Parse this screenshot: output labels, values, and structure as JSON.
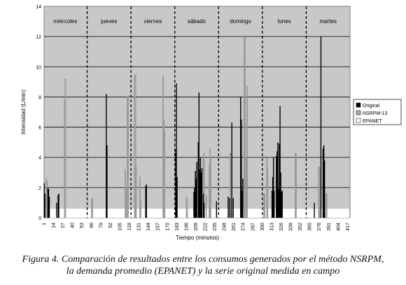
{
  "caption": {
    "line1": "Figura 4. Comparación de resultados entre los consumos generados por el método NSRPM,",
    "line2": "la demanda promedio (EPANET) y la serie original medida en campo"
  },
  "chart_data": {
    "type": "bar",
    "xlabel": "Tiempo (minutos)",
    "ylabel": "Intensidad (L/min)",
    "ylim": [
      0,
      14
    ],
    "yticks": [
      0,
      2,
      4,
      6,
      8,
      10,
      12,
      14
    ],
    "xlim": [
      1,
      420
    ],
    "xticks": [
      1,
      14,
      27,
      40,
      53,
      66,
      79,
      92,
      105,
      118,
      131,
      144,
      157,
      170,
      183,
      196,
      209,
      222,
      235,
      248,
      261,
      274,
      287,
      300,
      313,
      326,
      339,
      352,
      365,
      378,
      391,
      404,
      417
    ],
    "grid": true,
    "legend_position": "right",
    "day_boundaries": [
      60,
      120,
      180,
      240,
      300,
      360
    ],
    "day_labels": [
      {
        "label": "miércoles",
        "x": 30
      },
      {
        "label": "jueves",
        "x": 90
      },
      {
        "label": "viernes",
        "x": 150
      },
      {
        "label": "sábado",
        "x": 210
      },
      {
        "label": "domingo",
        "x": 270
      },
      {
        "label": "lunes",
        "x": 330
      },
      {
        "label": "martes",
        "x": 390
      }
    ],
    "series": [
      {
        "name": "Original",
        "color": "#000000",
        "points": [
          [
            1,
            2.3
          ],
          [
            2,
            1.6
          ],
          [
            6,
            2.0
          ],
          [
            7,
            1.9
          ],
          [
            8,
            1.4
          ],
          [
            18,
            1.0
          ],
          [
            20,
            1.5
          ],
          [
            21,
            1.6
          ],
          [
            86,
            8.2
          ],
          [
            87,
            4.8
          ],
          [
            140,
            2.1
          ],
          [
            141,
            2.2
          ],
          [
            181,
            4.5
          ],
          [
            182,
            8.9
          ],
          [
            183,
            2.7
          ],
          [
            206,
            1.7
          ],
          [
            207,
            2.0
          ],
          [
            208,
            3.1
          ],
          [
            209,
            2.6
          ],
          [
            210,
            3.7
          ],
          [
            212,
            5.0
          ],
          [
            213,
            8.3
          ],
          [
            214,
            3.2
          ],
          [
            215,
            4.0
          ],
          [
            216,
            3.0
          ],
          [
            217,
            3.3
          ],
          [
            219,
            1.6
          ],
          [
            220,
            1.0
          ],
          [
            237,
            1.1
          ],
          [
            253,
            1.4
          ],
          [
            255,
            1.3
          ],
          [
            258,
            6.3
          ],
          [
            260,
            1.3
          ],
          [
            270,
            8.0
          ],
          [
            271,
            6.5
          ],
          [
            272,
            1.8
          ],
          [
            273,
            2.6
          ],
          [
            313,
            1.8
          ],
          [
            314,
            2.7
          ],
          [
            315,
            4.0
          ],
          [
            316,
            1.8
          ],
          [
            319,
            4.1
          ],
          [
            320,
            4.4
          ],
          [
            321,
            5.0
          ],
          [
            322,
            1.9
          ],
          [
            323,
            4.9
          ],
          [
            324,
            7.4
          ],
          [
            325,
            3.0
          ],
          [
            326,
            1.7
          ],
          [
            327,
            1.8
          ],
          [
            371,
            1.0
          ],
          [
            380,
            12.0
          ],
          [
            383,
            4.6
          ],
          [
            384,
            4.8
          ],
          [
            385,
            3.8
          ]
        ]
      },
      {
        "name": "NSRPM-13",
        "color": "#888888",
        "points": [
          [
            4,
            2.6
          ],
          [
            5,
            2.4
          ],
          [
            29,
            7.8
          ],
          [
            30,
            9.2
          ],
          [
            66,
            1.2
          ],
          [
            67,
            1.3
          ],
          [
            112,
            3.2
          ],
          [
            113,
            2.0
          ],
          [
            115,
            8.0
          ],
          [
            116,
            8.1
          ],
          [
            125,
            9.4
          ],
          [
            126,
            9.5
          ],
          [
            127,
            3.4
          ],
          [
            132,
            2.7
          ],
          [
            133,
            1.2
          ],
          [
            164,
            9.4
          ],
          [
            165,
            6.5
          ],
          [
            166,
            5.8
          ],
          [
            196,
            1.4
          ],
          [
            197,
            1.2
          ],
          [
            219,
            4.1
          ],
          [
            220,
            4.3
          ],
          [
            223,
            1.5
          ],
          [
            227,
            3.5
          ],
          [
            228,
            4.6
          ],
          [
            229,
            4.0
          ],
          [
            256,
            4.3
          ],
          [
            257,
            4.2
          ],
          [
            275,
            11.9
          ],
          [
            276,
            12.0
          ],
          [
            278,
            4.0
          ],
          [
            279,
            8.7
          ],
          [
            302,
            1.6
          ],
          [
            303,
            1.6
          ],
          [
            306,
            3.9
          ],
          [
            307,
            3.2
          ],
          [
            345,
            4.3
          ],
          [
            346,
            4.2
          ],
          [
            377,
            3.4
          ],
          [
            378,
            3.3
          ],
          [
            386,
            1.6
          ],
          [
            388,
            1.6
          ]
        ]
      },
      {
        "name": "EPANET",
        "color": "#ffffff",
        "value": 0.6
      }
    ]
  }
}
